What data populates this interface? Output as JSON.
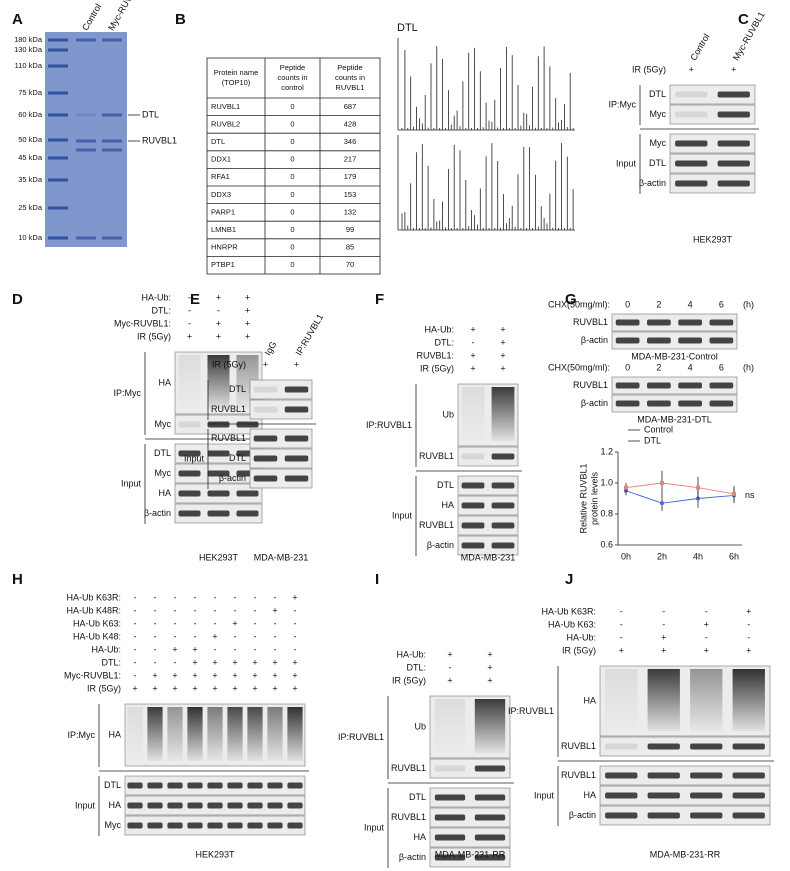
{
  "panels": {
    "A": {
      "label": "A",
      "markers": [
        "180 kDa",
        "130 kDa",
        "110 kDa",
        "75 kDa",
        "60 kDa",
        "50 kDa",
        "45 kDa",
        "35 kDa",
        "25 kDa",
        "10 kDa"
      ],
      "lanes": [
        "Control",
        "Myc-RUVBL1"
      ],
      "arrows": [
        "DTL",
        "RUVBL1"
      ]
    },
    "B": {
      "label": "B",
      "table": {
        "header": [
          [
            "Protein name",
            "(TOP10)"
          ],
          [
            "Peptide",
            "counts in",
            "control"
          ],
          [
            "Peptide",
            "counts in",
            "RUVBL1"
          ]
        ],
        "rows": [
          [
            "RUVBL1",
            0,
            687
          ],
          [
            "RUVBL2",
            0,
            428
          ],
          [
            "DTL",
            0,
            346
          ],
          [
            "DDX1",
            0,
            217
          ],
          [
            "RFA1",
            0,
            179
          ],
          [
            "DDX3",
            0,
            153
          ],
          [
            "PARP1",
            0,
            132
          ],
          [
            "LMNB1",
            0,
            99
          ],
          [
            "HNRPR",
            0,
            85
          ],
          [
            "PTBP1",
            0,
            70
          ]
        ]
      },
      "spectrum": "DTL"
    },
    "C": {
      "label": "C",
      "lanes": [
        "Control",
        "Myc-RUVBL1"
      ],
      "conditions": [
        {
          "name": "IR (5Gy)",
          "signs": [
            "+",
            "+"
          ]
        }
      ],
      "groups": [
        {
          "name": "IP:Myc",
          "blots": [
            "DTL",
            "Myc"
          ]
        },
        {
          "name": "Input",
          "blots": [
            "Myc",
            "DTL",
            "β-actin"
          ]
        }
      ],
      "cell": "HEK293T"
    },
    "D": {
      "label": "D",
      "conditions": [
        {
          "name": "HA-Ub:",
          "signs": [
            "-",
            "+",
            "+"
          ]
        },
        {
          "name": "DTL:",
          "signs": [
            "-",
            "-",
            "+"
          ]
        },
        {
          "name": "Myc-RUVBL1:",
          "signs": [
            "-",
            "+",
            "+"
          ]
        },
        {
          "name": "IR (5Gy)",
          "signs": [
            "+",
            "+",
            "+"
          ]
        }
      ],
      "groups": [
        {
          "name": "IP:Myc",
          "blots": [
            "HA",
            "Myc"
          ]
        },
        {
          "name": "Input",
          "blots": [
            "DTL",
            "Myc",
            "HA",
            "β-actin"
          ]
        }
      ],
      "cell": "HEK293T"
    },
    "E": {
      "label": "E",
      "lanes": [
        "IgG",
        "IP:RUVBL1"
      ],
      "conditions": [
        {
          "name": "IR (5Gy)",
          "signs": [
            "+",
            "+"
          ]
        }
      ],
      "groups": [
        {
          "blots": [
            "DTL",
            "RUVBL1"
          ]
        },
        {
          "name": "Input",
          "blots": [
            "RUVBL1",
            "DTL",
            "β-actin"
          ]
        }
      ],
      "cell": "MDA-MB-231"
    },
    "F": {
      "label": "F",
      "conditions": [
        {
          "name": "HA-Ub:",
          "signs": [
            "+",
            "+"
          ]
        },
        {
          "name": "DTL:",
          "signs": [
            "-",
            "+"
          ]
        },
        {
          "name": "RUVBL1:",
          "signs": [
            "+",
            "+"
          ]
        },
        {
          "name": "IR (5Gy)",
          "signs": [
            "+",
            "+"
          ]
        }
      ],
      "groups": [
        {
          "name": "IP:RUVBL1",
          "blots": [
            "Ub",
            "RUVBL1"
          ]
        },
        {
          "name": "Input",
          "blots": [
            "DTL",
            "HA",
            "RUVBL1",
            "β-actin"
          ]
        }
      ],
      "cell": "MDA-MB-231"
    },
    "G": {
      "label": "G",
      "blocks": [
        {
          "condition": {
            "name": "CHX(50mg/ml):",
            "signs": [
              0,
              2,
              4,
              6
            ],
            "unit": "(h)"
          },
          "blots": [
            "RUVBL1",
            "β-actin"
          ],
          "caption": "MDA-MB-231-Control"
        },
        {
          "condition": {
            "name": "CHX(50mg/ml):",
            "signs": [
              0,
              2,
              4,
              6
            ],
            "unit": "(h)"
          },
          "blots": [
            "RUVBL1",
            "β-actin"
          ],
          "caption": "MDA-MB-231-DTL"
        }
      ],
      "chart": {
        "type": "line",
        "x": [
          "0h",
          "2h",
          "4h",
          "6h"
        ],
        "ylabel": [
          "Relative RUVBL1",
          "protein levels"
        ],
        "ylim": [
          0.6,
          1.2
        ],
        "yticks": [
          0.6,
          0.8,
          {
            "value": 1,
            "label": "1.0"
          },
          1.2
        ],
        "legend": "upper left",
        "annotation": "ns",
        "series": [
          {
            "name": "Control",
            "color": "#4a63d8",
            "values": [
              0.95,
              0.87,
              0.9,
              0.92
            ],
            "errors": [
              0.03,
              0.05,
              0.06,
              0.05
            ]
          },
          {
            "name": "DTL",
            "color": "#e8837a",
            "values": [
              0.97,
              1.0,
              0.97,
              0.93
            ],
            "errors": [
              0.03,
              0.08,
              0.07,
              0.05
            ]
          }
        ]
      }
    },
    "H": {
      "label": "H",
      "conditions": [
        {
          "name": "HA-Ub K63R:",
          "signs": [
            "-",
            "-",
            "-",
            "-",
            "-",
            "-",
            "-",
            "-",
            "+"
          ]
        },
        {
          "name": "HA-Ub K48R:",
          "signs": [
            "-",
            "-",
            "-",
            "-",
            "-",
            "-",
            "-",
            "+",
            "-"
          ]
        },
        {
          "name": "HA-Ub K63:",
          "signs": [
            "-",
            "-",
            "-",
            "-",
            "-",
            "+",
            "-",
            "-",
            "-"
          ]
        },
        {
          "name": "HA-Ub K48:",
          "signs": [
            "-",
            "-",
            "-",
            "-",
            "+",
            "-",
            "-",
            "-",
            "-"
          ]
        },
        {
          "name": "HA-Ub:",
          "signs": [
            "-",
            "-",
            "+",
            "+",
            "-",
            "-",
            "-",
            "-",
            "-"
          ]
        },
        {
          "name": "DTL:",
          "signs": [
            "-",
            "-",
            "-",
            "+",
            "+",
            "+",
            "+",
            "+",
            "+"
          ]
        },
        {
          "name": "Myc-RUVBL1:",
          "signs": [
            "-",
            "+",
            "+",
            "+",
            "+",
            "+",
            "+",
            "+",
            "+"
          ]
        },
        {
          "name": "IR (5Gy)",
          "signs": [
            "+",
            "+",
            "+",
            "+",
            "+",
            "+",
            "+",
            "+",
            "+"
          ]
        }
      ],
      "groups": [
        {
          "name": "IP:Myc",
          "blots": [
            "HA"
          ]
        },
        {
          "name": "Input",
          "blots": [
            "DTL",
            "HA",
            "Myc"
          ]
        }
      ],
      "cell": "HEK293T"
    },
    "I": {
      "label": "I",
      "conditions": [
        {
          "name": "HA-Ub:",
          "signs": [
            "+",
            "+"
          ]
        },
        {
          "name": "DTL:",
          "signs": [
            "-",
            "+"
          ]
        },
        {
          "name": "IR (5Gy)",
          "signs": [
            "+",
            "+"
          ]
        }
      ],
      "groups": [
        {
          "name": "IP:RUVBL1",
          "blots": [
            "Ub",
            "RUVBL1"
          ]
        },
        {
          "name": "Input",
          "blots": [
            "DTL",
            "RUVBL1",
            "HA",
            "β-actin"
          ]
        }
      ],
      "cell": "MDA-MB-231-RR"
    },
    "J": {
      "label": "J",
      "conditions": [
        {
          "name": "HA-Ub K63R:",
          "signs": [
            "-",
            "-",
            "-",
            "+"
          ]
        },
        {
          "name": "HA-Ub K63:",
          "signs": [
            "-",
            "-",
            "+",
            "-"
          ]
        },
        {
          "name": "HA-Ub:",
          "signs": [
            "-",
            "+",
            "-",
            "-"
          ]
        },
        {
          "name": "IR (5Gy)",
          "signs": [
            "+",
            "+",
            "+",
            "+"
          ]
        }
      ],
      "groups": [
        {
          "name": "IP:RUVBL1",
          "blots": [
            "HA",
            "RUVBL1"
          ]
        },
        {
          "name": "Input",
          "blots": [
            "RUVBL1",
            "HA",
            "β-actin"
          ]
        }
      ],
      "cell": "MDA-MB-231-RR"
    }
  }
}
